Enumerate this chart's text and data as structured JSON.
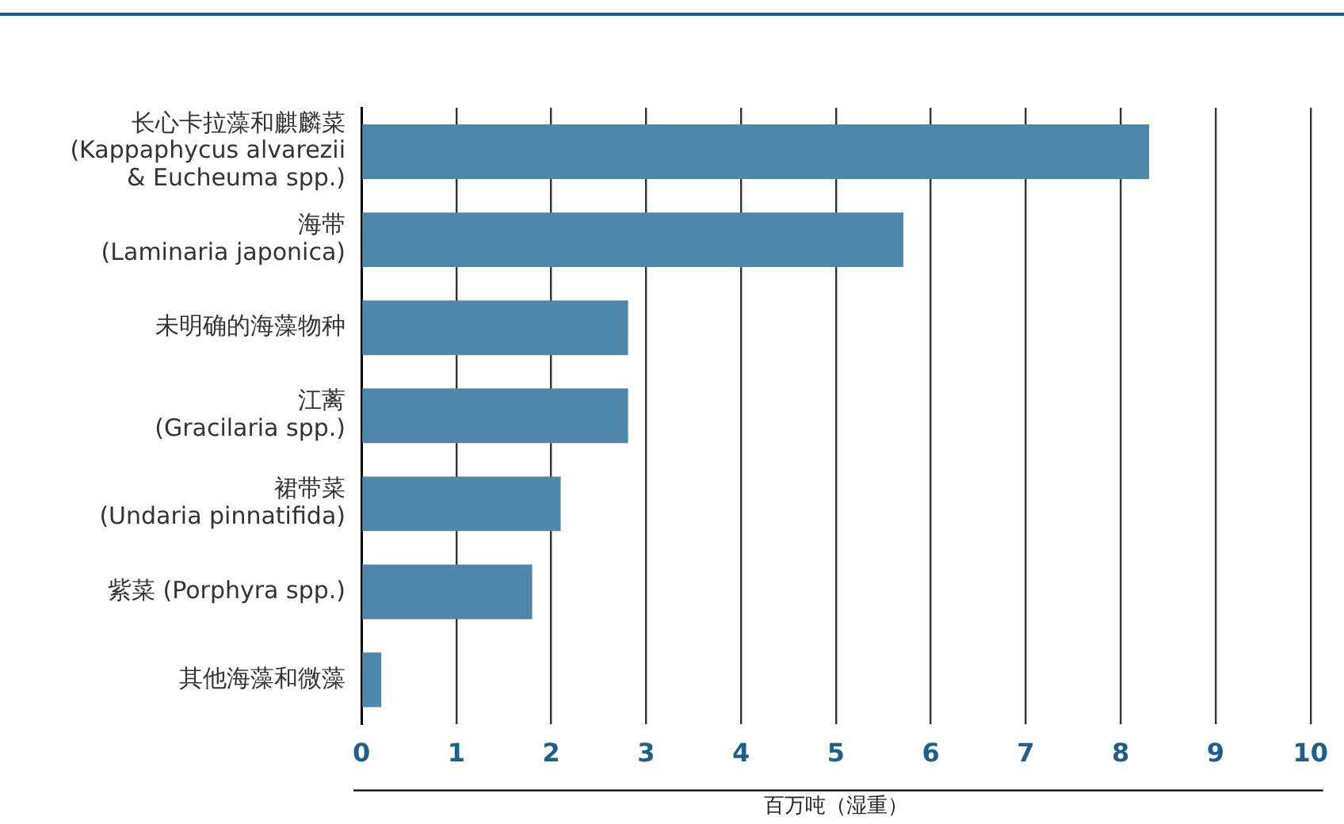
{
  "chart_data": {
    "type": "bar",
    "orientation": "horizontal",
    "xlabel": "百万吨（湿重）",
    "categories": [
      "长心卡拉藻和麒麟菜\n(Kappaphycus alvarezii\n& Eucheuma spp.)",
      "海带\n(Laminaria japonica)",
      "未明确的海藻物种",
      "江蓠\n(Gracilaria spp.)",
      "裙带菜\n(Undaria pinnatifida)",
      "紫菜 (Porphyra spp.)",
      "其他海藻和微藻"
    ],
    "values": [
      8.3,
      5.71,
      2.81,
      2.81,
      2.1,
      1.8,
      0.21
    ],
    "color": "#4e87aa",
    "xlim": [
      0,
      10
    ],
    "xticks": [
      0,
      1,
      2,
      3,
      4,
      5,
      6,
      7,
      8,
      9,
      10
    ],
    "grid": "x",
    "legend": false
  }
}
